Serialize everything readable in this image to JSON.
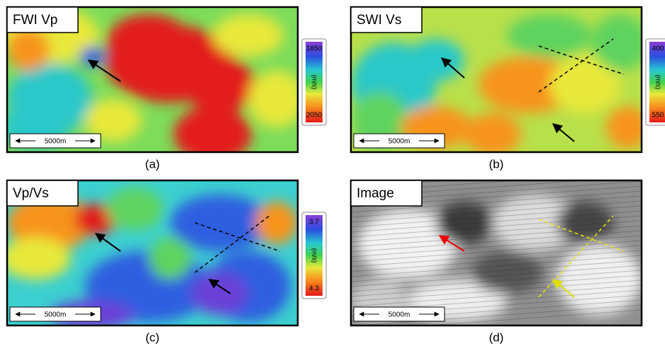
{
  "panels": [
    {
      "title": "FWI Vp",
      "scale": "5000m",
      "colorbar": {
        "top": "1850",
        "bottom": "2050",
        "unit": "(m/s)"
      },
      "caption": "(a)"
    },
    {
      "title": "SWI Vs",
      "scale": "5000m",
      "colorbar": {
        "top": "400",
        "bottom": "550",
        "unit": "(m/s)"
      },
      "caption": "(b)"
    },
    {
      "title": "Vp/Vs",
      "scale": "5000m",
      "colorbar": {
        "top": "3.7",
        "bottom": "4.3",
        "unit": "(m/s)"
      },
      "caption": "(c)"
    },
    {
      "title": "Image",
      "scale": "5000m",
      "caption": "(d)"
    }
  ]
}
